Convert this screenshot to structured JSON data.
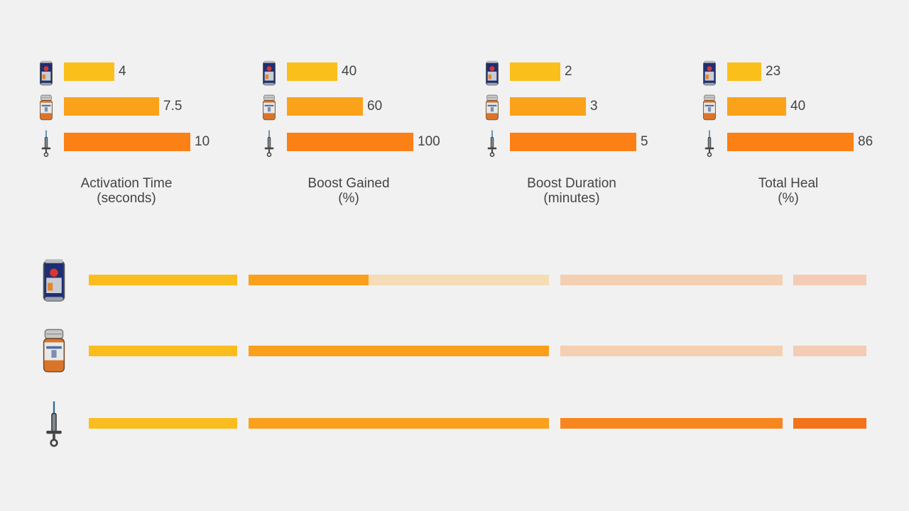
{
  "colors": {
    "background": "#f1f1f1",
    "energy_drink": "#fbbf1b",
    "painkiller": "#fba21b",
    "adrenaline_syringe": "#fb8016",
    "summary_metric_1": "#fbbd1d",
    "summary_metric_2": "#faa01c",
    "summary_metric_3": "#f8861f",
    "summary_metric_4": "#f3731a",
    "track_metric_2": "#f5dcb4",
    "track_metric_3": "#f4cfb2",
    "track_metric_4": "#f4cbb4",
    "text": "#444444"
  },
  "items": [
    {
      "icon": "energy-drink-can-icon"
    },
    {
      "icon": "painkiller-bottle-icon"
    },
    {
      "icon": "adrenaline-syringe-icon"
    }
  ],
  "chart_data": [
    {
      "type": "bar",
      "orientation": "horizontal",
      "title": "Activation Time",
      "unit": "(seconds)",
      "categories": [
        "energy-drink-can-icon",
        "painkiller-bottle-icon",
        "adrenaline-syringe-icon"
      ],
      "values": [
        4,
        7.5,
        10
      ],
      "value_labels": [
        "4",
        "7.5",
        "10"
      ],
      "xlim": [
        0,
        10
      ]
    },
    {
      "type": "bar",
      "orientation": "horizontal",
      "title": "Boost Gained",
      "unit": "(%)",
      "categories": [
        "energy-drink-can-icon",
        "painkiller-bottle-icon",
        "adrenaline-syringe-icon"
      ],
      "values": [
        40,
        60,
        100
      ],
      "value_labels": [
        "40",
        "60",
        "100"
      ],
      "xlim": [
        0,
        100
      ]
    },
    {
      "type": "bar",
      "orientation": "horizontal",
      "title": "Boost Duration",
      "unit": "(minutes)",
      "categories": [
        "energy-drink-can-icon",
        "painkiller-bottle-icon",
        "adrenaline-syringe-icon"
      ],
      "values": [
        2,
        3,
        5
      ],
      "value_labels": [
        "2",
        "3",
        "5"
      ],
      "xlim": [
        0,
        5
      ]
    },
    {
      "type": "bar",
      "orientation": "horizontal",
      "title": "Total Heal",
      "unit": "(%)",
      "categories": [
        "energy-drink-can-icon",
        "painkiller-bottle-icon",
        "adrenaline-syringe-icon"
      ],
      "values": [
        23,
        40,
        86
      ],
      "value_labels": [
        "23",
        "40",
        "86"
      ],
      "xlim": [
        0,
        86
      ]
    }
  ],
  "summary": {
    "type": "bar",
    "description_metrics_order": [
      "Activation Time",
      "Boost Gained",
      "Boost Duration",
      "Total Heal"
    ],
    "rows": [
      {
        "icon": "energy-drink-can-icon",
        "fractions": [
          1,
          0.4,
          0,
          0
        ]
      },
      {
        "icon": "painkiller-bottle-icon",
        "fractions": [
          1,
          1,
          0,
          0
        ]
      },
      {
        "icon": "adrenaline-syringe-icon",
        "fractions": [
          1,
          1,
          1,
          1
        ]
      }
    ]
  }
}
